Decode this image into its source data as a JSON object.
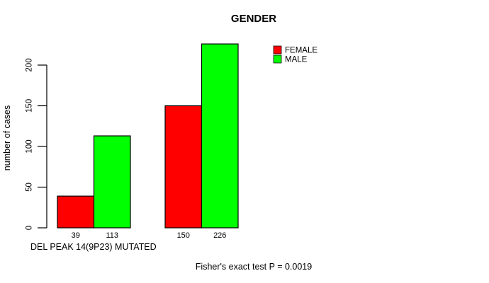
{
  "page": {
    "background": "#ffffff"
  },
  "chart_data": {
    "type": "bar",
    "title": "GENDER",
    "xlabel": "DEL PEAK 14(9P23) MUTATED",
    "ylabel": "number of cases",
    "ylim": [
      0,
      230
    ],
    "yticks": [
      0,
      50,
      100,
      150,
      200
    ],
    "grid": false,
    "legend_position": "top-right",
    "categories": [
      "group-1",
      "group-2"
    ],
    "series": [
      {
        "name": "FEMALE",
        "color": "#ff0000",
        "values": [
          39,
          150
        ]
      },
      {
        "name": "MALE",
        "color": "#00ff00",
        "values": [
          113,
          226
        ]
      }
    ],
    "bar_value_labels": [
      [
        "39",
        "150"
      ],
      [
        "113",
        "226"
      ]
    ],
    "annotation": "Fisher's exact test P = 0.0019",
    "axis_color": "#000000",
    "bar_border_color": "#000000"
  }
}
